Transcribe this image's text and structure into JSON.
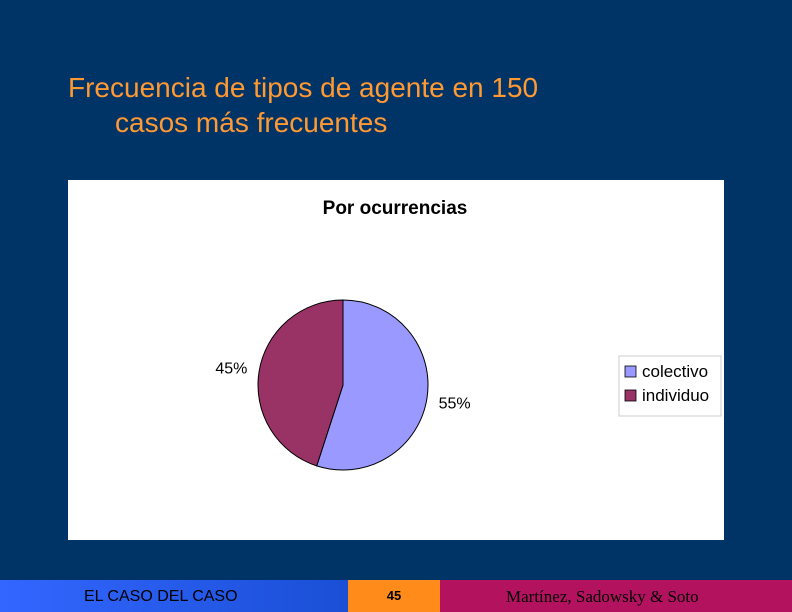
{
  "slide": {
    "title_line1": "Frecuencia de tipos de agente en 150",
    "title_line2": "casos más frecuentes",
    "background_color": "#003366",
    "title_color": "#ff9933"
  },
  "chart_data": {
    "type": "pie",
    "title": "Por ocurrencias",
    "series": [
      {
        "name": "colectivo",
        "value": 55,
        "label": "55%",
        "color": "#9999ff"
      },
      {
        "name": "individuo",
        "value": 45,
        "label": "45%",
        "color": "#993366"
      }
    ],
    "legend_position": "right"
  },
  "footer": {
    "left_text": "EL CASO DEL CASO",
    "page_number": "45",
    "right_text": "Martínez, Sadowsky & Soto"
  }
}
